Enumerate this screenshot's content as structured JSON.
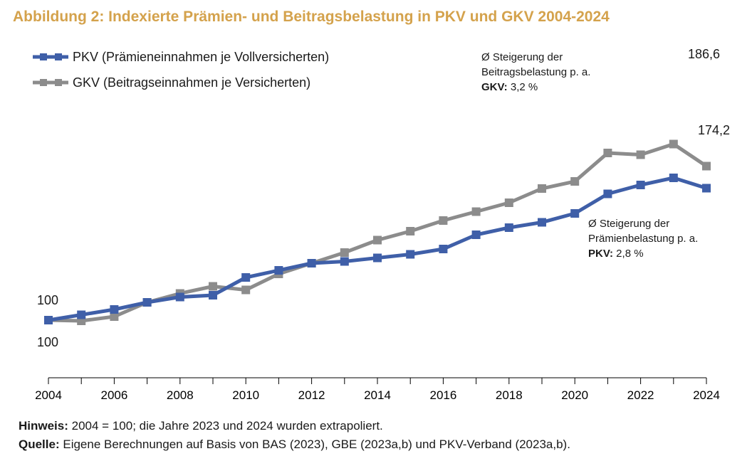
{
  "title": "Abbildung 2: Indexierte Prämien- und Beitragsbelastung in PKV und GKV 2004-2024",
  "colors": {
    "title": "#D4A24C",
    "pkv": "#3F5FA8",
    "gkv": "#8C8C8C"
  },
  "chart_data": {
    "type": "line",
    "x": [
      2004,
      2005,
      2006,
      2007,
      2008,
      2009,
      2010,
      2011,
      2012,
      2013,
      2014,
      2015,
      2016,
      2017,
      2018,
      2019,
      2020,
      2021,
      2022,
      2023,
      2024
    ],
    "series": [
      {
        "name": "PKV (Prämieneinnahmen je Vollversicherten)",
        "values": [
          100,
          103,
          106,
          110,
          113,
          114,
          124,
          128,
          132,
          133,
          135,
          137,
          140,
          148,
          152,
          155,
          160,
          171,
          176,
          180,
          174.2
        ]
      },
      {
        "name": "GKV (Beitragseinnahmen je Versicherten)",
        "values": [
          100,
          99.6,
          102,
          110,
          115,
          119,
          117,
          126,
          132,
          138,
          145,
          150,
          156,
          161,
          166,
          174,
          178,
          194,
          193,
          199,
          186.6
        ]
      }
    ],
    "xticks": [
      "2004",
      "2006",
      "2008",
      "2010",
      "2012",
      "2014",
      "2016",
      "2018",
      "2020",
      "2022",
      "2024"
    ],
    "xlim": [
      2004,
      2024
    ],
    "legend_position": "top-left",
    "data_labels": {
      "pkv_start": "100",
      "gkv_start": "100",
      "gkv_end": "186,6",
      "pkv_end": "174,2"
    },
    "annotations": {
      "gkv": {
        "line1": "Ø Steigerung der",
        "line2": "Beitragsbelastung p. a.",
        "bold": "GKV:",
        "value": "3,2 %"
      },
      "pkv": {
        "line1": "Ø Steigerung der",
        "line2": "Prämienbelastung p. a.",
        "bold": "PKV:",
        "value": "2,8 %"
      }
    }
  },
  "footer": {
    "note_label": "Hinweis:",
    "note_text": "2004 = 100; die Jahre 2023 und 2024 wurden extrapoliert.",
    "source_label": "Quelle:",
    "source_text": "Eigene Berechnungen auf Basis von BAS (2023), GBE (2023a,b) und PKV-Verband (2023a,b)."
  }
}
